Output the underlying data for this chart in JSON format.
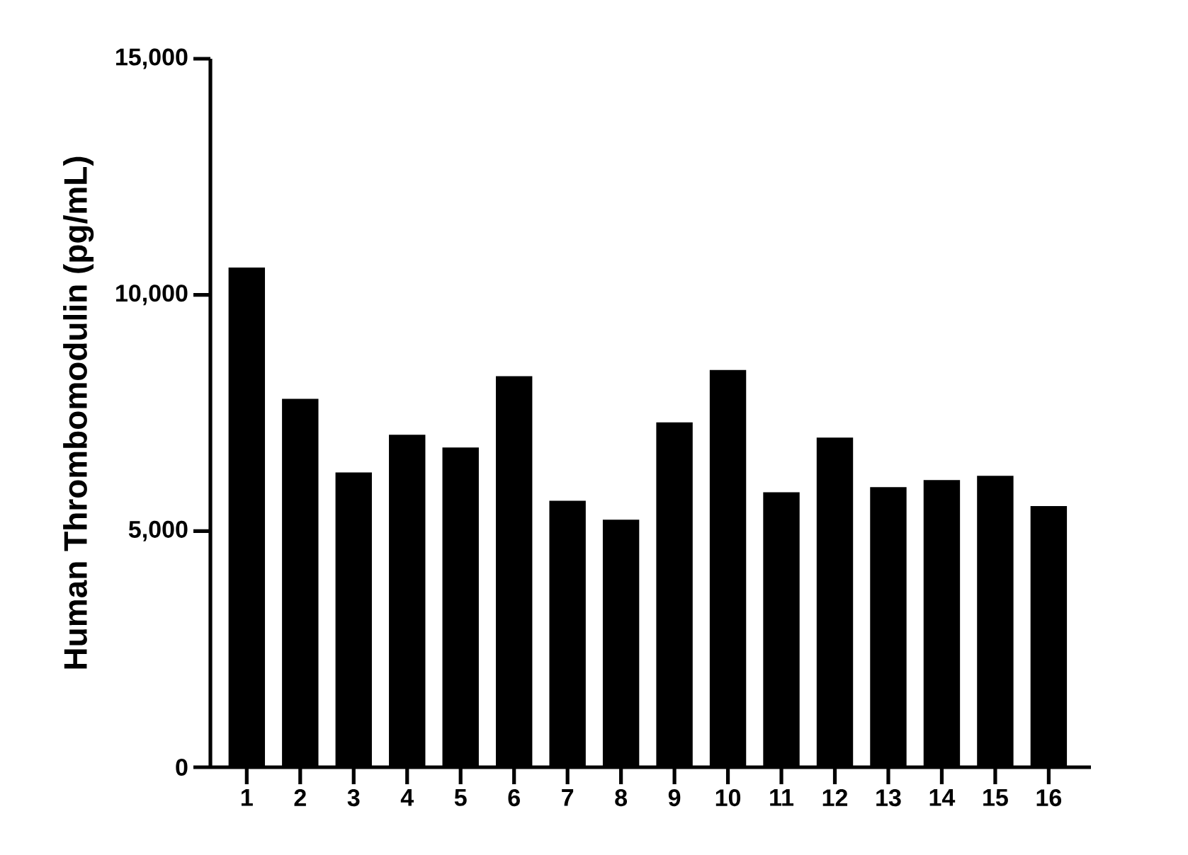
{
  "chart_data": {
    "type": "bar",
    "ylabel": "Human Thrombomodulin (pg/mL)",
    "categories": [
      "1",
      "2",
      "3",
      "4",
      "5",
      "6",
      "7",
      "8",
      "9",
      "10",
      "11",
      "12",
      "13",
      "14",
      "15",
      "16"
    ],
    "values": [
      10580,
      7800,
      6240,
      7040,
      6770,
      8280,
      5640,
      5240,
      7300,
      8410,
      5820,
      6980,
      5930,
      6080,
      6170,
      5530
    ],
    "color": "#000000",
    "ylim": [
      0,
      15000
    ],
    "yticks": [
      0,
      {
        "value": 5000,
        "label": "5,000"
      },
      {
        "value": 10000,
        "label": "10,000"
      },
      {
        "value": 15000,
        "label": "15,000"
      }
    ]
  }
}
